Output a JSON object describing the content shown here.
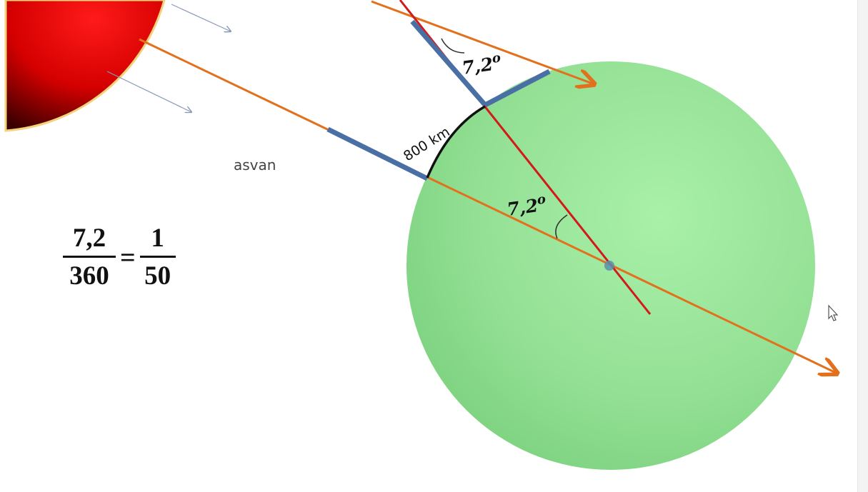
{
  "labels": {
    "angle_top": "7,2",
    "angle_top_sup": "o",
    "angle_center": "7,2",
    "angle_center_sup": "o",
    "arc_distance": "800 km",
    "city": "asvan"
  },
  "formula": {
    "left_numerator": "7,2",
    "left_denominator": "360",
    "equals": "=",
    "right_numerator": "1",
    "right_denominator": "50"
  },
  "colors": {
    "sun": "#e00000",
    "earth": "#98e39a",
    "sun_ray": "#e2701c",
    "radius_line": "#d11a1a",
    "stick": "#4a6fa5",
    "arc": "#111111"
  },
  "icons": {
    "cursor": "mouse-pointer-icon"
  }
}
